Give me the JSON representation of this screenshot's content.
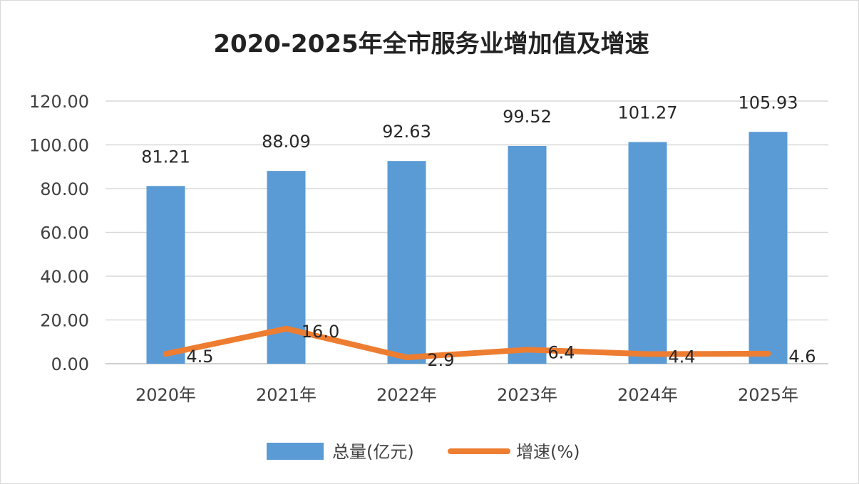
{
  "chart_data": {
    "type": "bar",
    "title": "2020-2025年全市服务业增加值及增速",
    "xlabel": "",
    "ylabel": "",
    "categories": [
      "2020年",
      "2021年",
      "2022年",
      "2023年",
      "2024年",
      "2025年"
    ],
    "ylim": [
      0,
      120
    ],
    "yticks": [
      "0.00",
      "20.00",
      "40.00",
      "60.00",
      "80.00",
      "100.00",
      "120.00"
    ],
    "grid": true,
    "legend_position": "bottom",
    "series": [
      {
        "name": "总量(亿元)",
        "type": "bar",
        "color": "#5b9bd5",
        "values": [
          81.21,
          88.09,
          92.63,
          99.52,
          101.27,
          105.93
        ],
        "labels": [
          "81.21",
          "88.09",
          "92.63",
          "99.52",
          "101.27",
          "105.93"
        ]
      },
      {
        "name": "增速(%)",
        "type": "line",
        "color": "#ed7d31",
        "values": [
          4.5,
          16.0,
          2.9,
          6.4,
          4.4,
          4.6
        ],
        "labels": [
          "4.5",
          "16.0",
          "2.9",
          "6.4",
          "4.4",
          "4.6"
        ]
      }
    ]
  }
}
